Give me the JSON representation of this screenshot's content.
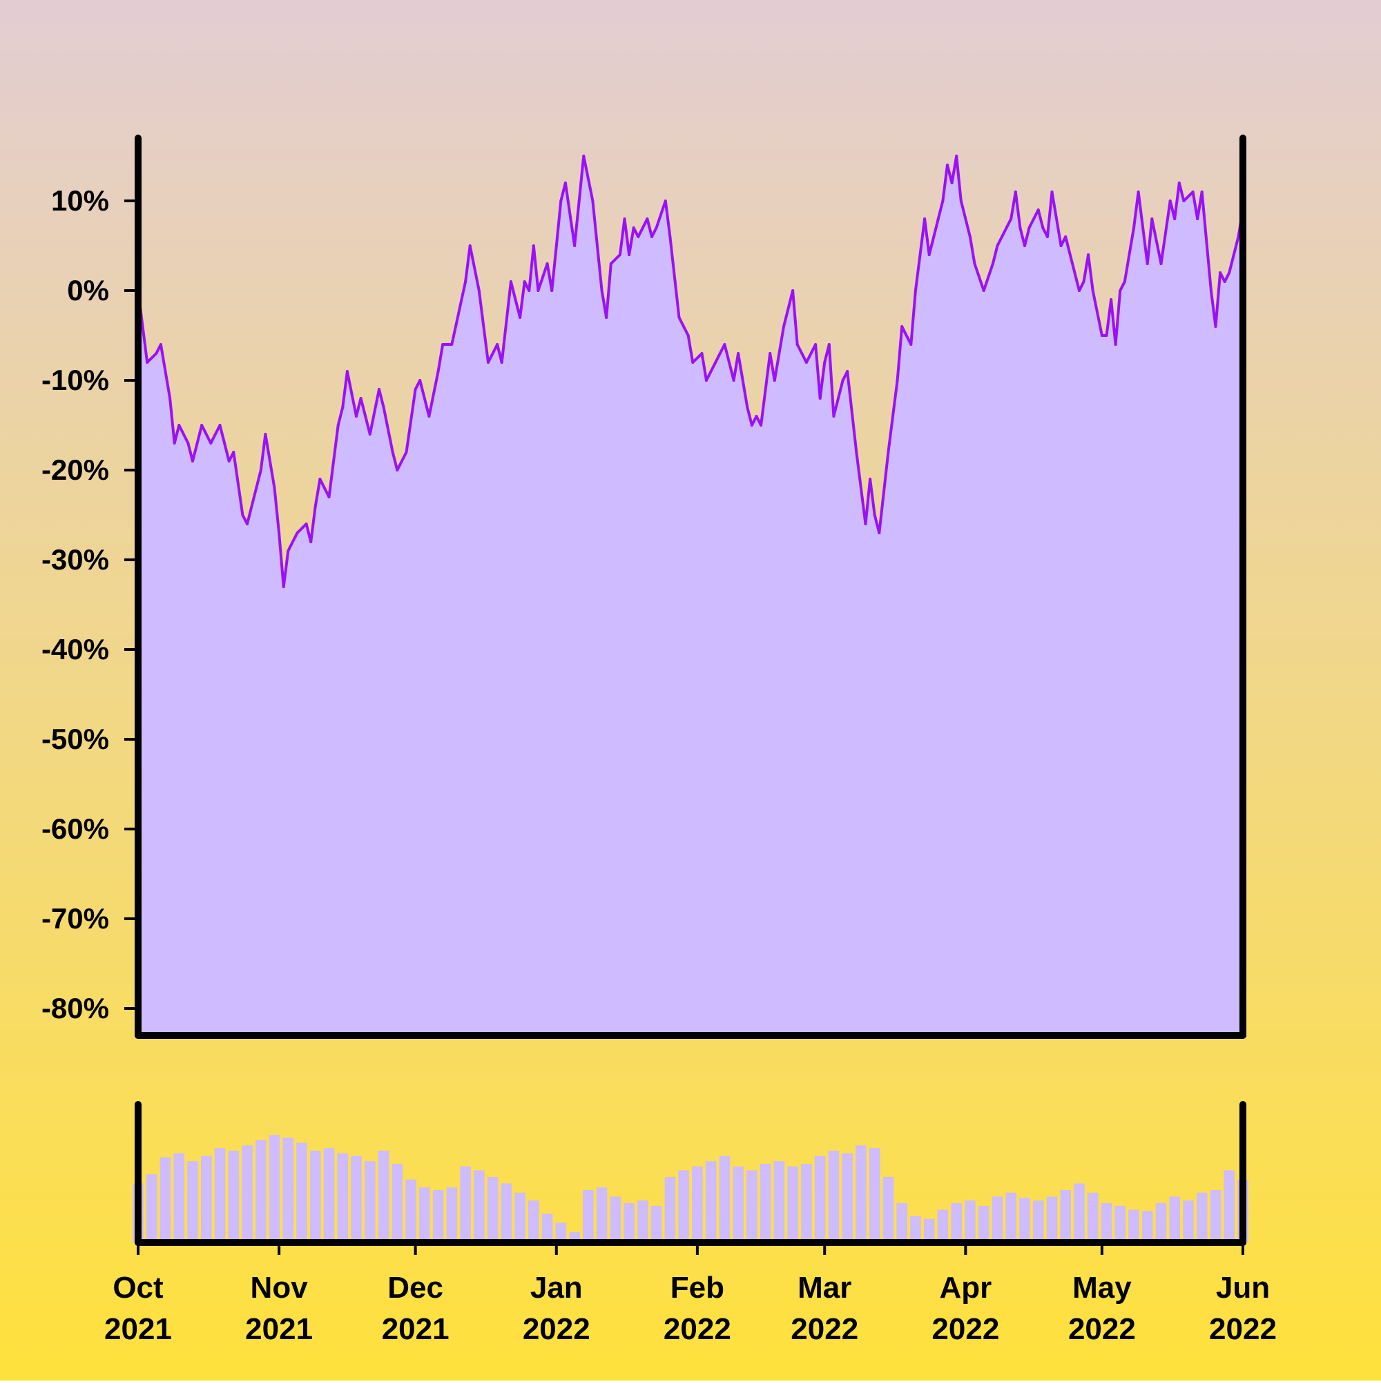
{
  "chart_data": {
    "type": "area",
    "title": "",
    "xlabel": "",
    "ylabel": "",
    "x_axis": {
      "range": [
        "2021-10-01",
        "2022-06-01"
      ],
      "ticks": [
        {
          "date": "2021-10-01",
          "month": "Oct",
          "year": "2021"
        },
        {
          "date": "2021-11-01",
          "month": "Nov",
          "year": "2021"
        },
        {
          "date": "2021-12-01",
          "month": "Dec",
          "year": "2021"
        },
        {
          "date": "2022-01-01",
          "month": "Jan",
          "year": "2022"
        },
        {
          "date": "2022-02-01",
          "month": "Feb",
          "year": "2022"
        },
        {
          "date": "2022-03-01",
          "month": "Mar",
          "year": "2022"
        },
        {
          "date": "2022-04-01",
          "month": "Apr",
          "year": "2022"
        },
        {
          "date": "2022-05-01",
          "month": "May",
          "year": "2022"
        },
        {
          "date": "2022-06-01",
          "month": "Jun",
          "year": "2022"
        }
      ]
    },
    "y_axis": {
      "range": [
        -83,
        17
      ],
      "ticks": [
        {
          "value": 10,
          "label": "10%"
        },
        {
          "value": 0,
          "label": "0%"
        },
        {
          "value": -10,
          "label": "-10%"
        },
        {
          "value": -20,
          "label": "-20%"
        },
        {
          "value": -30,
          "label": "-30%"
        },
        {
          "value": -40,
          "label": "-40%"
        },
        {
          "value": -50,
          "label": "-50%"
        },
        {
          "value": -60,
          "label": "-60%"
        },
        {
          "value": -70,
          "label": "-70%"
        },
        {
          "value": -80,
          "label": "-80%"
        }
      ]
    },
    "grid": false,
    "series": [
      {
        "kind": "cumulative-return-area",
        "unit": "percent",
        "points": [
          [
            "2021-10-01",
            0
          ],
          [
            "2021-10-03",
            -8
          ],
          [
            "2021-10-05",
            -7
          ],
          [
            "2021-10-06",
            -6
          ],
          [
            "2021-10-08",
            -12
          ],
          [
            "2021-10-09",
            -17
          ],
          [
            "2021-10-10",
            -15
          ],
          [
            "2021-10-12",
            -17
          ],
          [
            "2021-10-13",
            -19
          ],
          [
            "2021-10-15",
            -15
          ],
          [
            "2021-10-17",
            -17
          ],
          [
            "2021-10-19",
            -15
          ],
          [
            "2021-10-20",
            -17
          ],
          [
            "2021-10-21",
            -19
          ],
          [
            "2021-10-22",
            -18
          ],
          [
            "2021-10-24",
            -25
          ],
          [
            "2021-10-25",
            -26
          ],
          [
            "2021-10-27",
            -22
          ],
          [
            "2021-10-28",
            -20
          ],
          [
            "2021-10-29",
            -16
          ],
          [
            "2021-10-31",
            -22
          ],
          [
            "2021-11-01",
            -27
          ],
          [
            "2021-11-02",
            -33
          ],
          [
            "2021-11-03",
            -29
          ],
          [
            "2021-11-05",
            -27
          ],
          [
            "2021-11-07",
            -26
          ],
          [
            "2021-11-08",
            -28
          ],
          [
            "2021-11-09",
            -24
          ],
          [
            "2021-11-10",
            -21
          ],
          [
            "2021-11-12",
            -23
          ],
          [
            "2021-11-14",
            -15
          ],
          [
            "2021-11-15",
            -13
          ],
          [
            "2021-11-16",
            -9
          ],
          [
            "2021-11-18",
            -14
          ],
          [
            "2021-11-19",
            -12
          ],
          [
            "2021-11-21",
            -16
          ],
          [
            "2021-11-23",
            -11
          ],
          [
            "2021-11-24",
            -13
          ],
          [
            "2021-11-26",
            -18
          ],
          [
            "2021-11-27",
            -20
          ],
          [
            "2021-11-29",
            -18
          ],
          [
            "2021-12-01",
            -11
          ],
          [
            "2021-12-02",
            -10
          ],
          [
            "2021-12-04",
            -14
          ],
          [
            "2021-12-06",
            -9
          ],
          [
            "2021-12-07",
            -6
          ],
          [
            "2021-12-09",
            -6
          ],
          [
            "2021-12-12",
            1
          ],
          [
            "2021-12-13",
            5
          ],
          [
            "2021-12-15",
            0
          ],
          [
            "2021-12-17",
            -8
          ],
          [
            "2021-12-19",
            -6
          ],
          [
            "2021-12-20",
            -8
          ],
          [
            "2021-12-22",
            1
          ],
          [
            "2021-12-24",
            -3
          ],
          [
            "2021-12-25",
            1
          ],
          [
            "2021-12-26",
            0
          ],
          [
            "2021-12-27",
            5
          ],
          [
            "2021-12-28",
            0
          ],
          [
            "2021-12-30",
            3
          ],
          [
            "2021-12-31",
            0
          ],
          [
            "2022-01-01",
            5
          ],
          [
            "2022-01-02",
            10
          ],
          [
            "2022-01-03",
            12
          ],
          [
            "2022-01-05",
            5
          ],
          [
            "2022-01-06",
            10
          ],
          [
            "2022-01-07",
            15
          ],
          [
            "2022-01-09",
            10
          ],
          [
            "2022-01-11",
            0
          ],
          [
            "2022-01-12",
            -3
          ],
          [
            "2022-01-13",
            3
          ],
          [
            "2022-01-15",
            4
          ],
          [
            "2022-01-16",
            8
          ],
          [
            "2022-01-17",
            4
          ],
          [
            "2022-01-18",
            7
          ],
          [
            "2022-01-19",
            6
          ],
          [
            "2022-01-21",
            8
          ],
          [
            "2022-01-22",
            6
          ],
          [
            "2022-01-23",
            7
          ],
          [
            "2022-01-25",
            10
          ],
          [
            "2022-01-26",
            6
          ],
          [
            "2022-01-28",
            -3
          ],
          [
            "2022-01-30",
            -5
          ],
          [
            "2022-01-31",
            -8
          ],
          [
            "2022-02-02",
            -7
          ],
          [
            "2022-02-03",
            -10
          ],
          [
            "2022-02-05",
            -8
          ],
          [
            "2022-02-07",
            -6
          ],
          [
            "2022-02-09",
            -10
          ],
          [
            "2022-02-10",
            -7
          ],
          [
            "2022-02-12",
            -13
          ],
          [
            "2022-02-13",
            -15
          ],
          [
            "2022-02-14",
            -14
          ],
          [
            "2022-02-15",
            -15
          ],
          [
            "2022-02-17",
            -7
          ],
          [
            "2022-02-18",
            -10
          ],
          [
            "2022-02-20",
            -4
          ],
          [
            "2022-02-22",
            0
          ],
          [
            "2022-02-23",
            -6
          ],
          [
            "2022-02-25",
            -8
          ],
          [
            "2022-02-27",
            -6
          ],
          [
            "2022-02-28",
            -12
          ],
          [
            "2022-03-01",
            -8
          ],
          [
            "2022-03-02",
            -6
          ],
          [
            "2022-03-03",
            -14
          ],
          [
            "2022-03-05",
            -10
          ],
          [
            "2022-03-06",
            -9
          ],
          [
            "2022-03-08",
            -18
          ],
          [
            "2022-03-10",
            -26
          ],
          [
            "2022-03-11",
            -21
          ],
          [
            "2022-03-12",
            -25
          ],
          [
            "2022-03-13",
            -27
          ],
          [
            "2022-03-15",
            -18
          ],
          [
            "2022-03-17",
            -10
          ],
          [
            "2022-03-18",
            -4
          ],
          [
            "2022-03-20",
            -6
          ],
          [
            "2022-03-21",
            0
          ],
          [
            "2022-03-23",
            8
          ],
          [
            "2022-03-24",
            4
          ],
          [
            "2022-03-25",
            6
          ],
          [
            "2022-03-26",
            8
          ],
          [
            "2022-03-27",
            10
          ],
          [
            "2022-03-28",
            14
          ],
          [
            "2022-03-29",
            12
          ],
          [
            "2022-03-30",
            15
          ],
          [
            "2022-03-31",
            10
          ],
          [
            "2022-04-02",
            6
          ],
          [
            "2022-04-03",
            3
          ],
          [
            "2022-04-05",
            0
          ],
          [
            "2022-04-07",
            3
          ],
          [
            "2022-04-08",
            5
          ],
          [
            "2022-04-09",
            6
          ],
          [
            "2022-04-11",
            8
          ],
          [
            "2022-04-12",
            11
          ],
          [
            "2022-04-13",
            7
          ],
          [
            "2022-04-14",
            5
          ],
          [
            "2022-04-15",
            7
          ],
          [
            "2022-04-17",
            9
          ],
          [
            "2022-04-18",
            7
          ],
          [
            "2022-04-19",
            6
          ],
          [
            "2022-04-20",
            11
          ],
          [
            "2022-04-22",
            5
          ],
          [
            "2022-04-23",
            6
          ],
          [
            "2022-04-25",
            2
          ],
          [
            "2022-04-26",
            0
          ],
          [
            "2022-04-27",
            1
          ],
          [
            "2022-04-28",
            4
          ],
          [
            "2022-04-29",
            0
          ],
          [
            "2022-05-01",
            -5
          ],
          [
            "2022-05-02",
            -5
          ],
          [
            "2022-05-03",
            -1
          ],
          [
            "2022-05-04",
            -6
          ],
          [
            "2022-05-05",
            0
          ],
          [
            "2022-05-06",
            1
          ],
          [
            "2022-05-08",
            7
          ],
          [
            "2022-05-09",
            11
          ],
          [
            "2022-05-11",
            3
          ],
          [
            "2022-05-12",
            8
          ],
          [
            "2022-05-14",
            3
          ],
          [
            "2022-05-16",
            10
          ],
          [
            "2022-05-17",
            8
          ],
          [
            "2022-05-18",
            12
          ],
          [
            "2022-05-19",
            10
          ],
          [
            "2022-05-21",
            11
          ],
          [
            "2022-05-22",
            8
          ],
          [
            "2022-05-23",
            11
          ],
          [
            "2022-05-25",
            0
          ],
          [
            "2022-05-26",
            -4
          ],
          [
            "2022-05-27",
            2
          ],
          [
            "2022-05-28",
            1
          ],
          [
            "2022-05-29",
            2
          ],
          [
            "2022-05-30",
            4
          ],
          [
            "2022-05-31",
            6
          ],
          [
            "2022-06-01",
            9
          ]
        ]
      },
      {
        "kind": "volume-bars",
        "unit": "relative",
        "points": [
          [
            "2021-10-01",
            0.45
          ],
          [
            "2021-10-04",
            0.52
          ],
          [
            "2021-10-07",
            0.65
          ],
          [
            "2021-10-10",
            0.68
          ],
          [
            "2021-10-13",
            0.62
          ],
          [
            "2021-10-16",
            0.66
          ],
          [
            "2021-10-19",
            0.72
          ],
          [
            "2021-10-22",
            0.7
          ],
          [
            "2021-10-25",
            0.74
          ],
          [
            "2021-10-28",
            0.78
          ],
          [
            "2021-10-31",
            0.82
          ],
          [
            "2021-11-03",
            0.8
          ],
          [
            "2021-11-06",
            0.76
          ],
          [
            "2021-11-09",
            0.7
          ],
          [
            "2021-11-12",
            0.72
          ],
          [
            "2021-11-15",
            0.68
          ],
          [
            "2021-11-18",
            0.66
          ],
          [
            "2021-11-21",
            0.62
          ],
          [
            "2021-11-24",
            0.7
          ],
          [
            "2021-11-27",
            0.6
          ],
          [
            "2021-11-30",
            0.48
          ],
          [
            "2021-12-03",
            0.42
          ],
          [
            "2021-12-06",
            0.4
          ],
          [
            "2021-12-09",
            0.42
          ],
          [
            "2021-12-12",
            0.58
          ],
          [
            "2021-12-15",
            0.55
          ],
          [
            "2021-12-18",
            0.5
          ],
          [
            "2021-12-21",
            0.45
          ],
          [
            "2021-12-24",
            0.38
          ],
          [
            "2021-12-27",
            0.32
          ],
          [
            "2021-12-30",
            0.22
          ],
          [
            "2022-01-02",
            0.15
          ],
          [
            "2022-01-05",
            0.08
          ],
          [
            "2022-01-08",
            0.4
          ],
          [
            "2022-01-11",
            0.42
          ],
          [
            "2022-01-14",
            0.35
          ],
          [
            "2022-01-17",
            0.3
          ],
          [
            "2022-01-20",
            0.32
          ],
          [
            "2022-01-23",
            0.28
          ],
          [
            "2022-01-26",
            0.5
          ],
          [
            "2022-01-29",
            0.55
          ],
          [
            "2022-02-01",
            0.58
          ],
          [
            "2022-02-04",
            0.62
          ],
          [
            "2022-02-07",
            0.66
          ],
          [
            "2022-02-10",
            0.58
          ],
          [
            "2022-02-13",
            0.55
          ],
          [
            "2022-02-16",
            0.6
          ],
          [
            "2022-02-19",
            0.62
          ],
          [
            "2022-02-22",
            0.58
          ],
          [
            "2022-02-25",
            0.6
          ],
          [
            "2022-02-28",
            0.66
          ],
          [
            "2022-03-03",
            0.7
          ],
          [
            "2022-03-06",
            0.68
          ],
          [
            "2022-03-09",
            0.74
          ],
          [
            "2022-03-12",
            0.72
          ],
          [
            "2022-03-15",
            0.5
          ],
          [
            "2022-03-18",
            0.3
          ],
          [
            "2022-03-21",
            0.2
          ],
          [
            "2022-03-24",
            0.18
          ],
          [
            "2022-03-27",
            0.25
          ],
          [
            "2022-03-30",
            0.3
          ],
          [
            "2022-04-02",
            0.32
          ],
          [
            "2022-04-05",
            0.28
          ],
          [
            "2022-04-08",
            0.35
          ],
          [
            "2022-04-11",
            0.38
          ],
          [
            "2022-04-14",
            0.34
          ],
          [
            "2022-04-17",
            0.32
          ],
          [
            "2022-04-20",
            0.35
          ],
          [
            "2022-04-23",
            0.4
          ],
          [
            "2022-04-26",
            0.45
          ],
          [
            "2022-04-29",
            0.38
          ],
          [
            "2022-05-02",
            0.3
          ],
          [
            "2022-05-05",
            0.28
          ],
          [
            "2022-05-08",
            0.25
          ],
          [
            "2022-05-11",
            0.24
          ],
          [
            "2022-05-14",
            0.3
          ],
          [
            "2022-05-17",
            0.35
          ],
          [
            "2022-05-20",
            0.32
          ],
          [
            "2022-05-23",
            0.38
          ],
          [
            "2022-05-26",
            0.4
          ],
          [
            "2022-05-29",
            0.55
          ],
          [
            "2022-06-01",
            0.48
          ]
        ]
      }
    ]
  },
  "colors": {
    "background_top": "#e3cdd3",
    "background_bottom": "#ffe13c",
    "line": "#9a11f6",
    "area_fill": "#cfbbff",
    "volume_fill": "#cfbbff",
    "axis": "#000000"
  }
}
